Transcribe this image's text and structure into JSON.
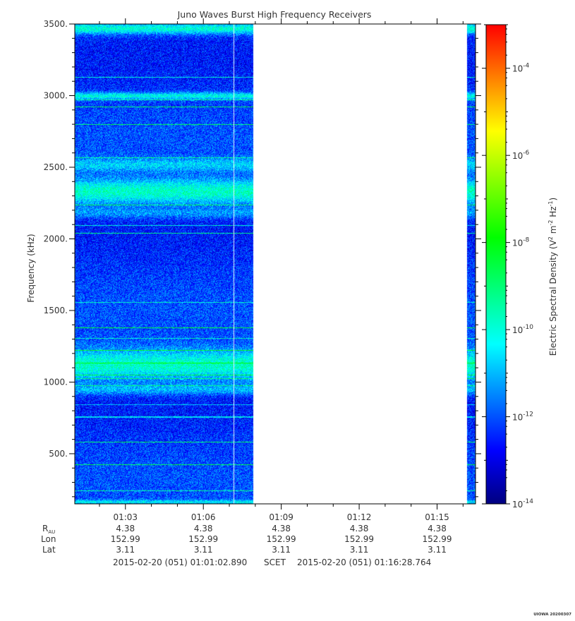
{
  "chart_data": {
    "type": "heatmap",
    "title": "Juno Waves Burst High Frequency Receivers",
    "ylabel": "Frequency (kHz)",
    "colorbar_label_parts": [
      "Electric Spectral Density (V",
      "2",
      " m",
      "-2",
      " Hz",
      "-1",
      ")"
    ],
    "ylim": [
      150,
      3500
    ],
    "y_ticks": [
      {
        "value": 500,
        "label": "500."
      },
      {
        "value": 1000,
        "label": "1000."
      },
      {
        "value": 1500,
        "label": "1500."
      },
      {
        "value": 2000,
        "label": "2000."
      },
      {
        "value": 2500,
        "label": "2500."
      },
      {
        "value": 3000,
        "label": "3000."
      },
      {
        "value": 3500,
        "label": "3500."
      }
    ],
    "x_range_minutes": [
      61.05,
      76.48
    ],
    "x_ticks": [
      {
        "value": 63,
        "label": "01:03",
        "rau": "4.38",
        "lon": "152.99",
        "lat": "3.11"
      },
      {
        "value": 66,
        "label": "01:06",
        "rau": "4.38",
        "lon": "152.99",
        "lat": "3.11"
      },
      {
        "value": 69,
        "label": "01:09",
        "rau": "4.38",
        "lon": "152.99",
        "lat": "3.11"
      },
      {
        "value": 72,
        "label": "01:12",
        "rau": "4.38",
        "lon": "152.99",
        "lat": "3.11"
      },
      {
        "value": 75,
        "label": "01:15",
        "rau": "4.38",
        "lon": "152.99",
        "lat": "3.11"
      }
    ],
    "ephemeris_labels": {
      "rau_main": "R",
      "rau_sub": "AU",
      "lon": "Lon",
      "lat": "Lat"
    },
    "time_footer": {
      "start": "2015-02-20 (051) 01:01:02.890",
      "mid": "SCET",
      "end": "2015-02-20 (051) 01:16:28.764"
    },
    "data_segments_minutes": [
      [
        61.05,
        67.9
      ],
      [
        76.15,
        76.48
      ]
    ],
    "gap_lines_minutes": [
      67.15
    ],
    "bright_bands_khz": [
      {
        "center": 3000,
        "width": 25,
        "strength": 0.8
      },
      {
        "center": 2330,
        "width": 90,
        "strength": 0.95
      },
      {
        "center": 2520,
        "width": 45,
        "strength": 0.5
      },
      {
        "center": 2180,
        "width": 40,
        "strength": 0.4
      },
      {
        "center": 1120,
        "width": 110,
        "strength": 0.95
      },
      {
        "center": 950,
        "width": 40,
        "strength": 0.5
      },
      {
        "center": 3470,
        "width": 40,
        "strength": 0.9
      },
      {
        "center": 165,
        "width": 15,
        "strength": 0.6
      }
    ],
    "colorbar": {
      "range_log10": [
        -14,
        -3
      ],
      "ticks": [
        {
          "exp": -14,
          "base": "10",
          "sup": "-14"
        },
        {
          "exp": -12,
          "base": "10",
          "sup": "-12"
        },
        {
          "exp": -10,
          "base": "10",
          "sup": "-10"
        },
        {
          "exp": -8,
          "base": "10",
          "sup": "-8"
        },
        {
          "exp": -6,
          "base": "10",
          "sup": "-6"
        },
        {
          "exp": -4,
          "base": "10",
          "sup": "-4"
        }
      ],
      "colors": [
        "#000080",
        "#0000ff",
        "#0080ff",
        "#00ffff",
        "#00ff80",
        "#00ff00",
        "#80ff00",
        "#ffff00",
        "#ff8000",
        "#ff0000"
      ]
    },
    "credit": "UIOWA 20200307"
  }
}
